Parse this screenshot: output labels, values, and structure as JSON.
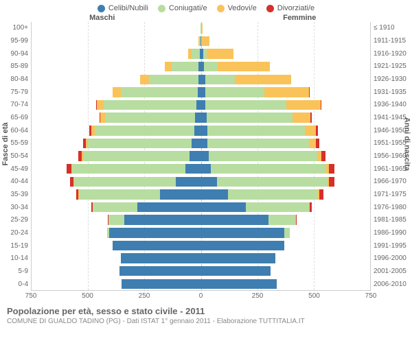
{
  "legend": [
    {
      "label": "Celibi/Nubili",
      "color": "#3f7eb0"
    },
    {
      "label": "Coniugati/e",
      "color": "#b8dda0"
    },
    {
      "label": "Vedovi/e",
      "color": "#f9c35a"
    },
    {
      "label": "Divorziati/e",
      "color": "#d6302a"
    }
  ],
  "headers": {
    "male": "Maschi",
    "female": "Femmine"
  },
  "axis_titles": {
    "left": "Fasce di età",
    "right": "Anni di nascita"
  },
  "xaxis": {
    "max": 750,
    "ticks": [
      750,
      500,
      250,
      0,
      250,
      500,
      750
    ]
  },
  "age_labels": [
    "100+",
    "95-99",
    "90-94",
    "85-89",
    "80-84",
    "75-79",
    "70-74",
    "65-69",
    "60-64",
    "55-59",
    "50-54",
    "45-49",
    "40-44",
    "35-39",
    "30-34",
    "25-29",
    "20-24",
    "15-19",
    "10-14",
    "5-9",
    "0-4"
  ],
  "birth_labels": [
    "≤ 1910",
    "1911-1915",
    "1916-1920",
    "1921-1925",
    "1926-1930",
    "1931-1935",
    "1936-1940",
    "1941-1945",
    "1946-1950",
    "1951-1955",
    "1956-1960",
    "1961-1965",
    "1966-1970",
    "1971-1975",
    "1976-1980",
    "1981-1985",
    "1986-1990",
    "1991-1995",
    "1996-2000",
    "2001-2005",
    "2006-2010"
  ],
  "rows": [
    {
      "m": {
        "c": 0,
        "s": 2,
        "v": 1,
        "d": 0
      },
      "f": {
        "c": 0,
        "s": 0,
        "v": 8,
        "d": 0
      }
    },
    {
      "m": {
        "c": 1,
        "s": 5,
        "v": 4,
        "d": 0
      },
      "f": {
        "c": 2,
        "s": 2,
        "v": 35,
        "d": 0
      }
    },
    {
      "m": {
        "c": 5,
        "s": 35,
        "v": 15,
        "d": 0
      },
      "f": {
        "c": 10,
        "s": 15,
        "v": 120,
        "d": 0
      }
    },
    {
      "m": {
        "c": 10,
        "s": 120,
        "v": 30,
        "d": 0
      },
      "f": {
        "c": 15,
        "s": 60,
        "v": 230,
        "d": 0
      }
    },
    {
      "m": {
        "c": 10,
        "s": 220,
        "v": 40,
        "d": 0
      },
      "f": {
        "c": 20,
        "s": 130,
        "v": 250,
        "d": 0
      }
    },
    {
      "m": {
        "c": 15,
        "s": 340,
        "v": 35,
        "d": 0
      },
      "f": {
        "c": 20,
        "s": 260,
        "v": 200,
        "d": 3
      }
    },
    {
      "m": {
        "c": 20,
        "s": 410,
        "v": 30,
        "d": 3
      },
      "f": {
        "c": 20,
        "s": 360,
        "v": 150,
        "d": 5
      }
    },
    {
      "m": {
        "c": 25,
        "s": 400,
        "v": 20,
        "d": 5
      },
      "f": {
        "c": 25,
        "s": 380,
        "v": 80,
        "d": 6
      }
    },
    {
      "m": {
        "c": 30,
        "s": 440,
        "v": 15,
        "d": 8
      },
      "f": {
        "c": 30,
        "s": 430,
        "v": 50,
        "d": 10
      }
    },
    {
      "m": {
        "c": 40,
        "s": 460,
        "v": 10,
        "d": 12
      },
      "f": {
        "c": 30,
        "s": 450,
        "v": 30,
        "d": 15
      }
    },
    {
      "m": {
        "c": 50,
        "s": 470,
        "v": 8,
        "d": 15
      },
      "f": {
        "c": 35,
        "s": 480,
        "v": 20,
        "d": 18
      }
    },
    {
      "m": {
        "c": 70,
        "s": 500,
        "v": 5,
        "d": 20
      },
      "f": {
        "c": 45,
        "s": 510,
        "v": 12,
        "d": 25
      }
    },
    {
      "m": {
        "c": 110,
        "s": 450,
        "v": 3,
        "d": 18
      },
      "f": {
        "c": 70,
        "s": 490,
        "v": 8,
        "d": 25
      }
    },
    {
      "m": {
        "c": 180,
        "s": 360,
        "v": 2,
        "d": 10
      },
      "f": {
        "c": 120,
        "s": 400,
        "v": 5,
        "d": 18
      }
    },
    {
      "m": {
        "c": 280,
        "s": 200,
        "v": 0,
        "d": 6
      },
      "f": {
        "c": 200,
        "s": 280,
        "v": 2,
        "d": 10
      }
    },
    {
      "m": {
        "c": 340,
        "s": 70,
        "v": 0,
        "d": 2
      },
      "f": {
        "c": 300,
        "s": 120,
        "v": 1,
        "d": 3
      }
    },
    {
      "m": {
        "c": 405,
        "s": 10,
        "v": 0,
        "d": 0
      },
      "f": {
        "c": 370,
        "s": 25,
        "v": 0,
        "d": 0
      }
    },
    {
      "m": {
        "c": 390,
        "s": 0,
        "v": 0,
        "d": 0
      },
      "f": {
        "c": 370,
        "s": 0,
        "v": 0,
        "d": 0
      }
    },
    {
      "m": {
        "c": 355,
        "s": 0,
        "v": 0,
        "d": 0
      },
      "f": {
        "c": 330,
        "s": 0,
        "v": 0,
        "d": 0
      }
    },
    {
      "m": {
        "c": 360,
        "s": 0,
        "v": 0,
        "d": 0
      },
      "f": {
        "c": 310,
        "s": 0,
        "v": 0,
        "d": 0
      }
    },
    {
      "m": {
        "c": 350,
        "s": 0,
        "v": 0,
        "d": 0
      },
      "f": {
        "c": 335,
        "s": 0,
        "v": 0,
        "d": 0
      }
    }
  ],
  "footer": {
    "title": "Popolazione per età, sesso e stato civile - 2011",
    "subtitle": "COMUNE DI GUALDO TADINO (PG) - Dati ISTAT 1° gennaio 2011 - Elaborazione TUTTITALIA.IT"
  },
  "colors": {
    "celibi": "#3f7eb0",
    "coniugati": "#b8dda0",
    "vedovi": "#f9c35a",
    "divorziati": "#d6302a",
    "grid": "#dddddd",
    "text": "#666666",
    "bg": "#ffffff"
  }
}
